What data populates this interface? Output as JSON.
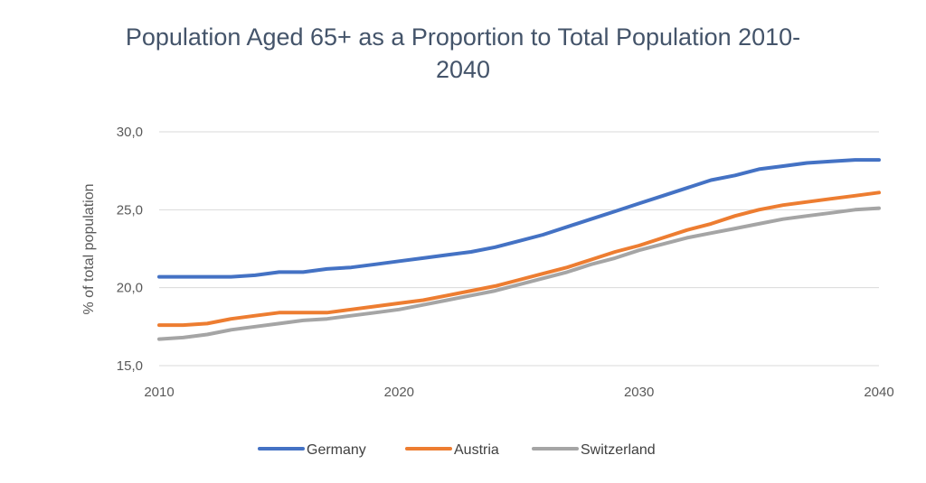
{
  "chart_data": {
    "type": "line",
    "title_lines": [
      "Population Aged 65+ as a Proportion to Total Population 2010-",
      "2040"
    ],
    "xlabel": "",
    "ylabel": "% of total population",
    "xlim": [
      2010,
      2040
    ],
    "ylim": [
      15,
      30
    ],
    "x_ticks": [
      2010,
      2020,
      2030,
      2040
    ],
    "y_ticks": [
      15,
      20,
      25,
      30
    ],
    "y_tick_labels": [
      "15,0",
      "20,0",
      "25,0",
      "30,0"
    ],
    "grid": true,
    "legend_position": "bottom",
    "x": [
      2010,
      2011,
      2012,
      2013,
      2014,
      2015,
      2016,
      2017,
      2018,
      2019,
      2020,
      2021,
      2022,
      2023,
      2024,
      2025,
      2026,
      2027,
      2028,
      2029,
      2030,
      2031,
      2032,
      2033,
      2034,
      2035,
      2036,
      2037,
      2038,
      2039,
      2040
    ],
    "series": [
      {
        "name": "Germany",
        "color": "#4472c4",
        "values": [
          20.7,
          20.7,
          20.7,
          20.7,
          20.8,
          21.0,
          21.0,
          21.2,
          21.3,
          21.5,
          21.7,
          21.9,
          22.1,
          22.3,
          22.6,
          23.0,
          23.4,
          23.9,
          24.4,
          24.9,
          25.4,
          25.9,
          26.4,
          26.9,
          27.2,
          27.6,
          27.8,
          28.0,
          28.1,
          28.2,
          28.2
        ]
      },
      {
        "name": "Austria",
        "color": "#ed7d31",
        "values": [
          17.6,
          17.6,
          17.7,
          18.0,
          18.2,
          18.4,
          18.4,
          18.4,
          18.6,
          18.8,
          19.0,
          19.2,
          19.5,
          19.8,
          20.1,
          20.5,
          20.9,
          21.3,
          21.8,
          22.3,
          22.7,
          23.2,
          23.7,
          24.1,
          24.6,
          25.0,
          25.3,
          25.5,
          25.7,
          25.9,
          26.1
        ]
      },
      {
        "name": "Switzerland",
        "color": "#a5a5a5",
        "values": [
          16.7,
          16.8,
          17.0,
          17.3,
          17.5,
          17.7,
          17.9,
          18.0,
          18.2,
          18.4,
          18.6,
          18.9,
          19.2,
          19.5,
          19.8,
          20.2,
          20.6,
          21.0,
          21.5,
          21.9,
          22.4,
          22.8,
          23.2,
          23.5,
          23.8,
          24.1,
          24.4,
          24.6,
          24.8,
          25.0,
          25.1
        ]
      }
    ]
  }
}
